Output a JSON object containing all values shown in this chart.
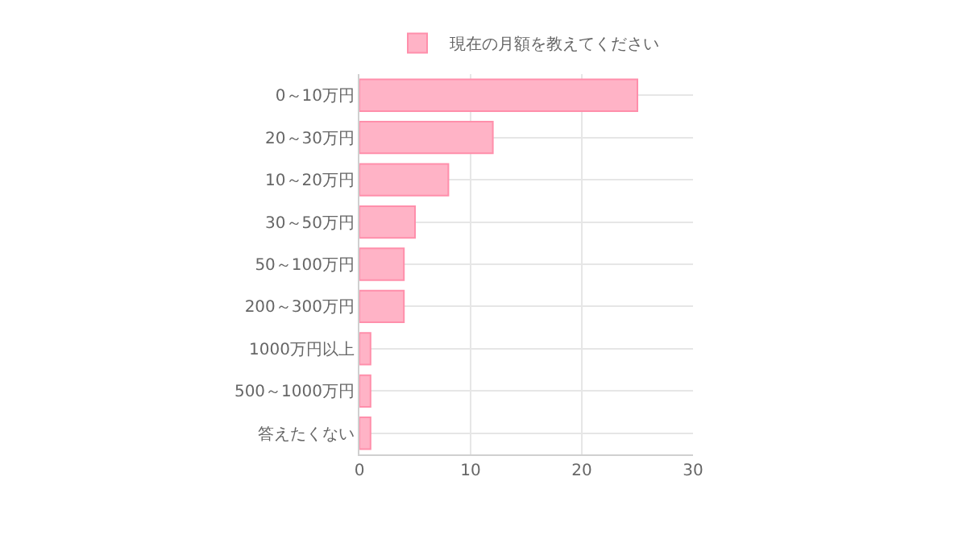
{
  "chart_data": {
    "type": "bar",
    "orientation": "horizontal",
    "categories": [
      "0～10万円",
      "20～30万円",
      "10～20万円",
      "30～50万円",
      "50～100万円",
      "200～300万円",
      "1000万円以上",
      "500～1000万円",
      "答えたくない"
    ],
    "series": [
      {
        "name": "現在の月額を教えてください",
        "color": "#ffb3c6",
        "values": [
          25,
          12,
          8,
          5,
          4,
          4,
          1,
          1,
          1
        ]
      }
    ],
    "xlim": [
      0,
      30
    ],
    "xticks": [
      0,
      10,
      20,
      30
    ],
    "grid": true,
    "legend": "top"
  }
}
